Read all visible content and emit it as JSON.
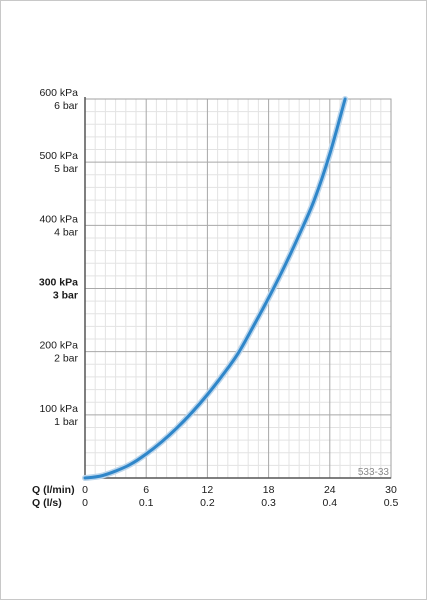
{
  "chart_data": {
    "type": "line",
    "title": "",
    "code_label": "533-33",
    "x_axis_primary": {
      "label": "Q (l/min)",
      "ticks": [
        "0",
        "6",
        "12",
        "18",
        "24",
        "30"
      ],
      "range": [
        0,
        30
      ]
    },
    "x_axis_secondary": {
      "label": "Q (l/s)",
      "ticks": [
        "0",
        "0.1",
        "0.2",
        "0.3",
        "0.4",
        "0.5"
      ],
      "range": [
        0,
        0.5
      ]
    },
    "y_axis": {
      "range": [
        0,
        600
      ],
      "ticks": [
        {
          "value": 600,
          "kpa": "600 kPa",
          "bar": "6 bar",
          "bold": false
        },
        {
          "value": 500,
          "kpa": "500 kPa",
          "bar": "5 bar",
          "bold": false
        },
        {
          "value": 400,
          "kpa": "400 kPa",
          "bar": "4 bar",
          "bold": false
        },
        {
          "value": 300,
          "kpa": "300 kPa",
          "bar": "3 bar",
          "bold": true
        },
        {
          "value": 200,
          "kpa": "200 kPa",
          "bar": "2 bar",
          "bold": false
        },
        {
          "value": 100,
          "kpa": "100 kPa",
          "bar": "1 bar",
          "bold": false
        }
      ]
    },
    "grid": true,
    "series": [
      {
        "color": "#2f86c9",
        "points": [
          [
            0,
            0
          ],
          [
            1.5,
            3
          ],
          [
            3,
            11
          ],
          [
            4.5,
            22
          ],
          [
            6,
            38
          ],
          [
            7.5,
            57
          ],
          [
            9,
            79
          ],
          [
            10.5,
            104
          ],
          [
            12,
            132
          ],
          [
            13.5,
            163
          ],
          [
            15,
            197
          ],
          [
            16.5,
            240
          ],
          [
            18,
            285
          ],
          [
            19.5,
            333
          ],
          [
            21,
            385
          ],
          [
            22.5,
            441
          ],
          [
            24,
            513
          ],
          [
            25.5,
            600
          ]
        ]
      }
    ]
  }
}
